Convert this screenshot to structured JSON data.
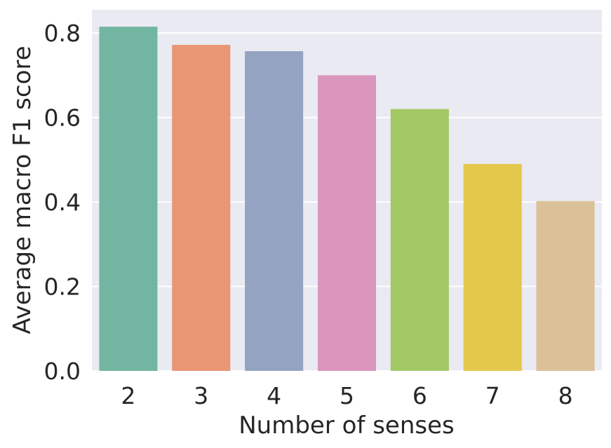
{
  "chart_data": {
    "type": "bar",
    "xlabel": "Number of senses",
    "ylabel": "Average macro F1 score",
    "categories": [
      "2",
      "3",
      "4",
      "5",
      "6",
      "7",
      "8"
    ],
    "values": [
      0.815,
      0.772,
      0.757,
      0.7,
      0.62,
      0.49,
      0.402
    ],
    "ylim": [
      0,
      0.855
    ],
    "yticks": [
      0.0,
      0.2,
      0.4,
      0.6,
      0.8
    ],
    "ytick_labels": [
      "0.0",
      "0.2",
      "0.4",
      "0.6",
      "0.8"
    ],
    "grid": true,
    "legend": "none",
    "colors": [
      "#72b6a1",
      "#e99675",
      "#95a3c3",
      "#db96be",
      "#a2c865",
      "#e4c84b",
      "#dbc198"
    ],
    "background": "#eaeaf2",
    "gridline_color": "#ffffff"
  }
}
